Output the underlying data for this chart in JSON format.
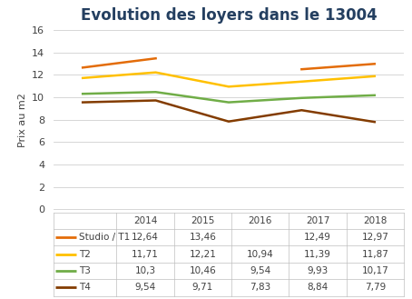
{
  "title": "Evolution des loyers dans le 13004",
  "ylabel": "Prix au m2",
  "years": [
    2014,
    2015,
    2016,
    2017,
    2018
  ],
  "series": {
    "Studio / T1": {
      "values": [
        12.64,
        13.46,
        null,
        12.49,
        12.97
      ],
      "color": "#E36C09"
    },
    "T2": {
      "values": [
        11.71,
        12.21,
        10.94,
        11.39,
        11.87
      ],
      "color": "#FFC000"
    },
    "T3": {
      "values": [
        10.3,
        10.46,
        9.54,
        9.93,
        10.17
      ],
      "color": "#70AD47"
    },
    "T4": {
      "values": [
        9.54,
        9.71,
        7.83,
        8.84,
        7.79
      ],
      "color": "#833C00"
    }
  },
  "table_data": {
    "Studio / T1": [
      "12,64",
      "13,46",
      "",
      "12,49",
      "12,97"
    ],
    "T2": [
      "11,71",
      "12,21",
      "10,94",
      "11,39",
      "11,87"
    ],
    "T3": [
      "10,3",
      "10,46",
      "9,54",
      "9,93",
      "10,17"
    ],
    "T4": [
      "9,54",
      "9,71",
      "7,83",
      "8,84",
      "7,79"
    ]
  },
  "ylim": [
    0,
    16
  ],
  "yticks": [
    0,
    2,
    4,
    6,
    8,
    10,
    12,
    14,
    16
  ],
  "background_color": "#FFFFFF",
  "title_fontsize": 12,
  "title_color": "#243F60",
  "line_width": 1.8
}
